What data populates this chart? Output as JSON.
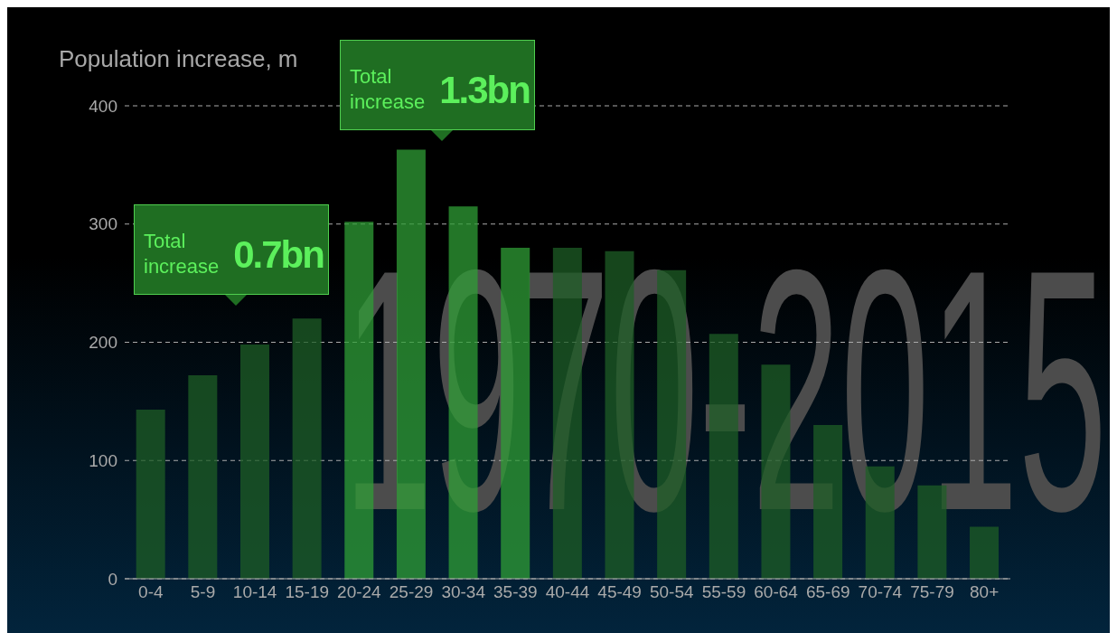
{
  "chart_data": {
    "type": "bar",
    "title": "Population increase, m",
    "categories": [
      "0-4",
      "5-9",
      "10-14",
      "15-19",
      "20-24",
      "25-29",
      "30-34",
      "35-39",
      "40-44",
      "45-49",
      "50-54",
      "55-59",
      "60-64",
      "65-69",
      "70-74",
      "75-79",
      "80+"
    ],
    "values": [
      143,
      172,
      198,
      220,
      302,
      363,
      315,
      280,
      280,
      277,
      261,
      207,
      181,
      130,
      95,
      79,
      44
    ],
    "colors": [
      "#1d5e25",
      "#1d5e25",
      "#1d5e25",
      "#1d5e25",
      "#2f9e35",
      "#2f9e35",
      "#2f9e35",
      "#2f9e35",
      "#1d5e25",
      "#1d5e25",
      "#1d5e25",
      "#1d5e25",
      "#1d5e25",
      "#1d5e25",
      "#1d5e25",
      "#1d5e25",
      "#1d5e25"
    ],
    "ylim": [
      0,
      400
    ],
    "yticks": [
      0,
      100,
      200,
      300,
      400
    ],
    "grid": "y",
    "annotations": [
      "1970-2015",
      "Total increase 0.7bn",
      "Total increase 1.3bn"
    ]
  }
}
